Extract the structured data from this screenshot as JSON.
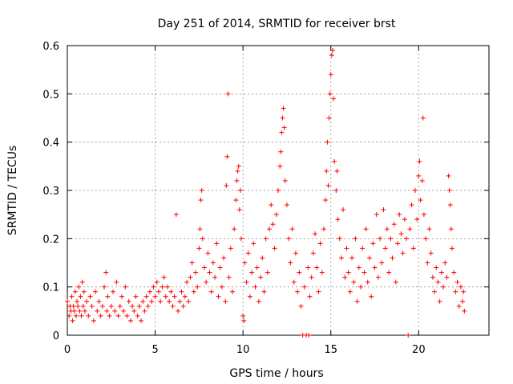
{
  "chart_data": {
    "type": "scatter",
    "title": "Day 251 of 2014, SRMTID for receiver brst",
    "xlabel": "GPS time / hours",
    "ylabel": "SRMTID / TECUs",
    "xlim": [
      0,
      24
    ],
    "ylim": [
      0,
      0.6
    ],
    "x_ticks": [
      0,
      5,
      10,
      15,
      20
    ],
    "y_ticks": [
      0,
      0.1,
      0.2,
      0.3,
      0.4,
      0.5,
      0.6
    ],
    "x_tick_labels": [
      "0",
      "5",
      "10",
      "15",
      "20"
    ],
    "y_tick_labels": [
      "0",
      "0.1",
      "0.2",
      "0.3",
      "0.4",
      "0.5",
      "0.6"
    ],
    "grid": true,
    "marker": "+",
    "color": "#ff0000",
    "series": [
      {
        "name": "SRMTID",
        "points": [
          [
            0.0,
            0.07
          ],
          [
            0.1,
            0.04
          ],
          [
            0.15,
            0.06
          ],
          [
            0.2,
            0.05
          ],
          [
            0.25,
            0.08
          ],
          [
            0.3,
            0.03
          ],
          [
            0.35,
            0.06
          ],
          [
            0.4,
            0.05
          ],
          [
            0.45,
            0.09
          ],
          [
            0.5,
            0.04
          ],
          [
            0.55,
            0.07
          ],
          [
            0.6,
            0.06
          ],
          [
            0.65,
            0.1
          ],
          [
            0.7,
            0.05
          ],
          [
            0.75,
            0.08
          ],
          [
            0.8,
            0.04
          ],
          [
            0.85,
            0.11
          ],
          [
            0.9,
            0.06
          ],
          [
            0.95,
            0.09
          ],
          [
            1.0,
            0.05
          ],
          [
            1.1,
            0.07
          ],
          [
            1.2,
            0.04
          ],
          [
            1.3,
            0.08
          ],
          [
            1.4,
            0.06
          ],
          [
            1.5,
            0.03
          ],
          [
            1.6,
            0.09
          ],
          [
            1.7,
            0.05
          ],
          [
            1.8,
            0.07
          ],
          [
            1.9,
            0.04
          ],
          [
            2.0,
            0.06
          ],
          [
            2.1,
            0.1
          ],
          [
            2.2,
            0.13
          ],
          [
            2.25,
            0.05
          ],
          [
            2.3,
            0.08
          ],
          [
            2.4,
            0.04
          ],
          [
            2.5,
            0.06
          ],
          [
            2.6,
            0.09
          ],
          [
            2.7,
            0.05
          ],
          [
            2.8,
            0.11
          ],
          [
            2.9,
            0.04
          ],
          [
            3.0,
            0.06
          ],
          [
            3.1,
            0.08
          ],
          [
            3.2,
            0.05
          ],
          [
            3.3,
            0.1
          ],
          [
            3.4,
            0.04
          ],
          [
            3.5,
            0.07
          ],
          [
            3.6,
            0.03
          ],
          [
            3.7,
            0.06
          ],
          [
            3.8,
            0.05
          ],
          [
            3.9,
            0.08
          ],
          [
            4.0,
            0.04
          ],
          [
            4.1,
            0.06
          ],
          [
            4.2,
            0.03
          ],
          [
            4.3,
            0.07
          ],
          [
            4.4,
            0.05
          ],
          [
            4.5,
            0.08
          ],
          [
            4.6,
            0.06
          ],
          [
            4.7,
            0.09
          ],
          [
            4.8,
            0.07
          ],
          [
            4.9,
            0.1
          ],
          [
            5.0,
            0.08
          ],
          [
            5.1,
            0.11
          ],
          [
            5.2,
            0.09
          ],
          [
            5.3,
            0.07
          ],
          [
            5.4,
            0.1
          ],
          [
            5.5,
            0.12
          ],
          [
            5.6,
            0.08
          ],
          [
            5.7,
            0.1
          ],
          [
            5.8,
            0.07
          ],
          [
            5.9,
            0.09
          ],
          [
            6.0,
            0.06
          ],
          [
            6.1,
            0.08
          ],
          [
            6.2,
            0.25
          ],
          [
            6.3,
            0.05
          ],
          [
            6.4,
            0.07
          ],
          [
            6.5,
            0.09
          ],
          [
            6.6,
            0.06
          ],
          [
            6.7,
            0.08
          ],
          [
            6.8,
            0.11
          ],
          [
            6.9,
            0.07
          ],
          [
            7.0,
            0.12
          ],
          [
            7.1,
            0.15
          ],
          [
            7.2,
            0.09
          ],
          [
            7.3,
            0.13
          ],
          [
            7.4,
            0.1
          ],
          [
            7.5,
            0.18
          ],
          [
            7.55,
            0.22
          ],
          [
            7.6,
            0.28
          ],
          [
            7.65,
            0.3
          ],
          [
            7.7,
            0.2
          ],
          [
            7.8,
            0.14
          ],
          [
            7.9,
            0.11
          ],
          [
            8.0,
            0.17
          ],
          [
            8.1,
            0.13
          ],
          [
            8.2,
            0.09
          ],
          [
            8.3,
            0.15
          ],
          [
            8.4,
            0.12
          ],
          [
            8.5,
            0.19
          ],
          [
            8.6,
            0.08
          ],
          [
            8.7,
            0.14
          ],
          [
            8.8,
            0.1
          ],
          [
            8.9,
            0.16
          ],
          [
            9.0,
            0.07
          ],
          [
            9.05,
            0.31
          ],
          [
            9.1,
            0.37
          ],
          [
            9.15,
            0.5
          ],
          [
            9.2,
            0.12
          ],
          [
            9.3,
            0.18
          ],
          [
            9.4,
            0.09
          ],
          [
            9.5,
            0.22
          ],
          [
            9.6,
            0.28
          ],
          [
            9.65,
            0.32
          ],
          [
            9.7,
            0.34
          ],
          [
            9.75,
            0.35
          ],
          [
            9.8,
            0.26
          ],
          [
            9.85,
            0.3
          ],
          [
            9.9,
            0.2
          ],
          [
            10.0,
            0.04
          ],
          [
            10.05,
            0.03
          ],
          [
            10.1,
            0.15
          ],
          [
            10.2,
            0.11
          ],
          [
            10.3,
            0.17
          ],
          [
            10.4,
            0.08
          ],
          [
            10.5,
            0.13
          ],
          [
            10.6,
            0.19
          ],
          [
            10.7,
            0.1
          ],
          [
            10.8,
            0.14
          ],
          [
            10.9,
            0.07
          ],
          [
            11.0,
            0.12
          ],
          [
            11.1,
            0.16
          ],
          [
            11.2,
            0.09
          ],
          [
            11.3,
            0.2
          ],
          [
            11.4,
            0.13
          ],
          [
            11.5,
            0.22
          ],
          [
            11.6,
            0.27
          ],
          [
            11.7,
            0.23
          ],
          [
            11.8,
            0.18
          ],
          [
            11.9,
            0.25
          ],
          [
            12.0,
            0.3
          ],
          [
            12.1,
            0.35
          ],
          [
            12.15,
            0.38
          ],
          [
            12.2,
            0.42
          ],
          [
            12.25,
            0.45
          ],
          [
            12.3,
            0.47
          ],
          [
            12.35,
            0.43
          ],
          [
            12.4,
            0.32
          ],
          [
            12.5,
            0.27
          ],
          [
            12.6,
            0.2
          ],
          [
            12.7,
            0.15
          ],
          [
            12.8,
            0.22
          ],
          [
            12.9,
            0.11
          ],
          [
            13.0,
            0.17
          ],
          [
            13.1,
            0.09
          ],
          [
            13.2,
            0.13
          ],
          [
            13.3,
            0.06
          ],
          [
            13.4,
            0.0
          ],
          [
            13.5,
            0.1
          ],
          [
            13.6,
            0.0
          ],
          [
            13.7,
            0.14
          ],
          [
            13.75,
            0.0
          ],
          [
            13.8,
            0.08
          ],
          [
            13.9,
            0.12
          ],
          [
            14.0,
            0.17
          ],
          [
            14.1,
            0.21
          ],
          [
            14.2,
            0.14
          ],
          [
            14.3,
            0.09
          ],
          [
            14.4,
            0.19
          ],
          [
            14.5,
            0.13
          ],
          [
            14.6,
            0.22
          ],
          [
            14.7,
            0.28
          ],
          [
            14.75,
            0.34
          ],
          [
            14.8,
            0.4
          ],
          [
            14.85,
            0.31
          ],
          [
            14.9,
            0.45
          ],
          [
            14.95,
            0.5
          ],
          [
            15.0,
            0.54
          ],
          [
            15.05,
            0.58
          ],
          [
            15.1,
            0.59
          ],
          [
            15.15,
            0.49
          ],
          [
            15.2,
            0.36
          ],
          [
            15.3,
            0.3
          ],
          [
            15.35,
            0.34
          ],
          [
            15.4,
            0.24
          ],
          [
            15.5,
            0.2
          ],
          [
            15.6,
            0.16
          ],
          [
            15.7,
            0.26
          ],
          [
            15.8,
            0.12
          ],
          [
            15.9,
            0.18
          ],
          [
            16.0,
            0.13
          ],
          [
            16.1,
            0.09
          ],
          [
            16.2,
            0.16
          ],
          [
            16.3,
            0.11
          ],
          [
            16.4,
            0.2
          ],
          [
            16.5,
            0.07
          ],
          [
            16.6,
            0.14
          ],
          [
            16.7,
            0.1
          ],
          [
            16.8,
            0.18
          ],
          [
            16.9,
            0.13
          ],
          [
            17.0,
            0.22
          ],
          [
            17.1,
            0.11
          ],
          [
            17.2,
            0.16
          ],
          [
            17.3,
            0.08
          ],
          [
            17.4,
            0.19
          ],
          [
            17.5,
            0.14
          ],
          [
            17.6,
            0.25
          ],
          [
            17.7,
            0.12
          ],
          [
            17.8,
            0.2
          ],
          [
            17.9,
            0.15
          ],
          [
            18.0,
            0.26
          ],
          [
            18.1,
            0.18
          ],
          [
            18.2,
            0.22
          ],
          [
            18.3,
            0.13
          ],
          [
            18.4,
            0.2
          ],
          [
            18.5,
            0.16
          ],
          [
            18.6,
            0.23
          ],
          [
            18.7,
            0.11
          ],
          [
            18.8,
            0.19
          ],
          [
            18.9,
            0.25
          ],
          [
            19.0,
            0.21
          ],
          [
            19.1,
            0.17
          ],
          [
            19.2,
            0.24
          ],
          [
            19.3,
            0.2
          ],
          [
            19.4,
            0.0
          ],
          [
            19.5,
            0.22
          ],
          [
            19.6,
            0.27
          ],
          [
            19.7,
            0.18
          ],
          [
            19.8,
            0.3
          ],
          [
            19.9,
            0.24
          ],
          [
            20.0,
            0.33
          ],
          [
            20.05,
            0.36
          ],
          [
            20.1,
            0.28
          ],
          [
            20.2,
            0.32
          ],
          [
            20.25,
            0.45
          ],
          [
            20.3,
            0.25
          ],
          [
            20.4,
            0.2
          ],
          [
            20.5,
            0.15
          ],
          [
            20.6,
            0.22
          ],
          [
            20.7,
            0.17
          ],
          [
            20.8,
            0.12
          ],
          [
            20.9,
            0.09
          ],
          [
            21.0,
            0.14
          ],
          [
            21.1,
            0.11
          ],
          [
            21.2,
            0.07
          ],
          [
            21.3,
            0.13
          ],
          [
            21.4,
            0.1
          ],
          [
            21.5,
            0.15
          ],
          [
            21.6,
            0.12
          ],
          [
            21.7,
            0.33
          ],
          [
            21.75,
            0.3
          ],
          [
            21.8,
            0.27
          ],
          [
            21.85,
            0.22
          ],
          [
            21.9,
            0.18
          ],
          [
            22.0,
            0.13
          ],
          [
            22.1,
            0.09
          ],
          [
            22.2,
            0.11
          ],
          [
            22.3,
            0.06
          ],
          [
            22.4,
            0.1
          ],
          [
            22.5,
            0.07
          ],
          [
            22.55,
            0.09
          ],
          [
            22.6,
            0.05
          ]
        ]
      }
    ]
  }
}
